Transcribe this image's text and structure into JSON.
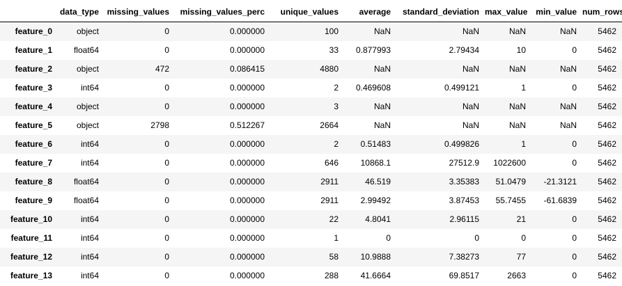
{
  "table": {
    "index_header": "",
    "columns": [
      "data_type",
      "missing_values",
      "missing_values_perc",
      "unique_values",
      "average",
      "standard_deviation",
      "max_value",
      "min_value",
      "num_rows"
    ],
    "rows": [
      {
        "index": "feature_0",
        "cells": [
          "object",
          "0",
          "0.000000",
          "100",
          "NaN",
          "NaN",
          "NaN",
          "NaN",
          "5462"
        ]
      },
      {
        "index": "feature_1",
        "cells": [
          "float64",
          "0",
          "0.000000",
          "33",
          "0.877993",
          "2.79434",
          "10",
          "0",
          "5462"
        ]
      },
      {
        "index": "feature_2",
        "cells": [
          "object",
          "472",
          "0.086415",
          "4880",
          "NaN",
          "NaN",
          "NaN",
          "NaN",
          "5462"
        ]
      },
      {
        "index": "feature_3",
        "cells": [
          "int64",
          "0",
          "0.000000",
          "2",
          "0.469608",
          "0.499121",
          "1",
          "0",
          "5462"
        ]
      },
      {
        "index": "feature_4",
        "cells": [
          "object",
          "0",
          "0.000000",
          "3",
          "NaN",
          "NaN",
          "NaN",
          "NaN",
          "5462"
        ]
      },
      {
        "index": "feature_5",
        "cells": [
          "object",
          "2798",
          "0.512267",
          "2664",
          "NaN",
          "NaN",
          "NaN",
          "NaN",
          "5462"
        ]
      },
      {
        "index": "feature_6",
        "cells": [
          "int64",
          "0",
          "0.000000",
          "2",
          "0.51483",
          "0.499826",
          "1",
          "0",
          "5462"
        ]
      },
      {
        "index": "feature_7",
        "cells": [
          "int64",
          "0",
          "0.000000",
          "646",
          "10868.1",
          "27512.9",
          "1022600",
          "0",
          "5462"
        ]
      },
      {
        "index": "feature_8",
        "cells": [
          "float64",
          "0",
          "0.000000",
          "2911",
          "46.519",
          "3.35383",
          "51.0479",
          "-21.3121",
          "5462"
        ]
      },
      {
        "index": "feature_9",
        "cells": [
          "float64",
          "0",
          "0.000000",
          "2911",
          "2.99492",
          "3.87453",
          "55.7455",
          "-61.6839",
          "5462"
        ]
      },
      {
        "index": "feature_10",
        "cells": [
          "int64",
          "0",
          "0.000000",
          "22",
          "4.8041",
          "2.96115",
          "21",
          "0",
          "5462"
        ]
      },
      {
        "index": "feature_11",
        "cells": [
          "int64",
          "0",
          "0.000000",
          "1",
          "0",
          "0",
          "0",
          "0",
          "5462"
        ]
      },
      {
        "index": "feature_12",
        "cells": [
          "int64",
          "0",
          "0.000000",
          "58",
          "10.9888",
          "7.38273",
          "77",
          "0",
          "5462"
        ]
      },
      {
        "index": "feature_13",
        "cells": [
          "int64",
          "0",
          "0.000000",
          "288",
          "41.6664",
          "69.8517",
          "2663",
          "0",
          "5462"
        ]
      }
    ]
  },
  "colors": {
    "odd_row": "#f5f5f5",
    "even_row": "#ffffff",
    "text": "#000000",
    "header_rule": "#000000"
  }
}
